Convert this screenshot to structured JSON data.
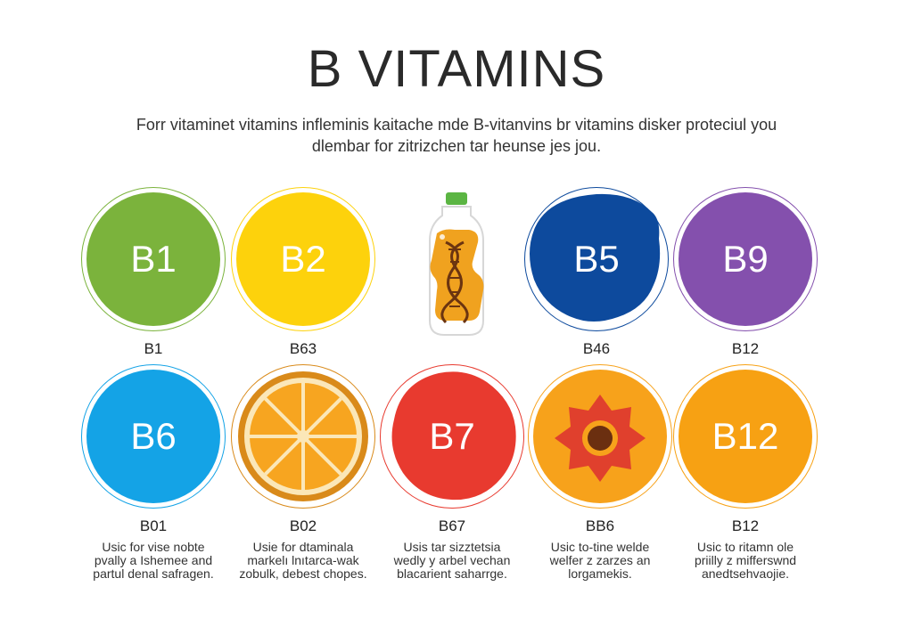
{
  "title": "B VITAMINS",
  "subtitle_lines": [
    "Forr vitaminet vitamins infleminis kaitache mde B-vitanvins br vitamins disker proteciul you",
    "dlembar for zitrizchen tar heunse jes jou."
  ],
  "colors": {
    "b1": "#7bb33c",
    "b2": "#fdd20c",
    "b5": "#0d4a9d",
    "b9": "#8450ad",
    "b6": "#14a3e6",
    "orange_rind": "#d98a1a",
    "orange_flesh": "#f7a520",
    "b7": "#e83a2f",
    "bb6": "#f7a21b",
    "b12": "#f7a113",
    "bottle_cap": "#5bb543",
    "bottle_liquid": "#f0a21f",
    "dna": "#6b3410",
    "flower": "#e0402d"
  },
  "row1": [
    {
      "circle_label": "B1",
      "caption": "B1",
      "icon": "green-circle"
    },
    {
      "circle_label": "B2",
      "caption": "B63",
      "icon": "yellow-circle"
    },
    {
      "circle_label": "",
      "caption": "",
      "icon": "bottle-dna-icon"
    },
    {
      "circle_label": "B5",
      "caption": "B46",
      "icon": "blue-blob"
    },
    {
      "circle_label": "B9",
      "caption": "B12",
      "icon": "purple-circle"
    }
  ],
  "row2": [
    {
      "circle_label": "B6",
      "caption": "B01",
      "icon": "blue-circle",
      "desc": [
        "Usic for vise nobte",
        "pvally a Ishemee and",
        "partul denal safragen."
      ]
    },
    {
      "circle_label": "",
      "caption": "B02",
      "icon": "orange-slice-icon",
      "desc": [
        "Usie for dtaminala",
        "markelı lnıtarca-wak",
        "zobulk, debest chopes."
      ]
    },
    {
      "circle_label": "B7",
      "caption": "B67",
      "icon": "red-blob",
      "desc": [
        "Usis tar sizztetsia",
        "wedly y arbel vechan",
        "blacarient saharrge."
      ]
    },
    {
      "circle_label": "",
      "caption": "BB6",
      "icon": "flower-icon",
      "desc": [
        "Usic to-tine welde",
        "welfer z zarzes an",
        "lorgamekis."
      ]
    },
    {
      "circle_label": "B12",
      "caption": "B12",
      "icon": "orange-circle",
      "desc": [
        "Usic to ritamn ole",
        "priilly z mifferswnd",
        "anedtsehvaojie."
      ]
    }
  ]
}
